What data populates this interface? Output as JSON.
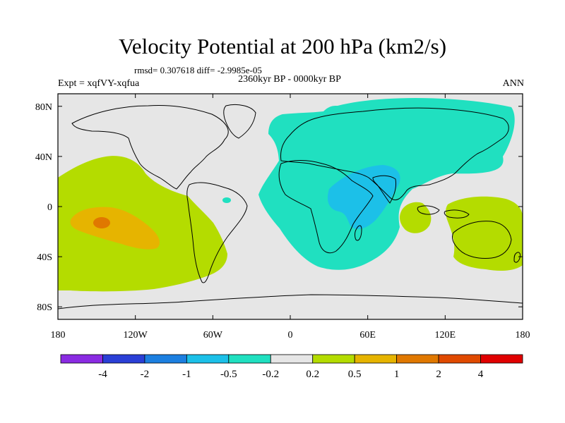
{
  "title": "Velocity Potential at 200 hPa (km2/s)",
  "stats": "rmsd= 0.307618 diff= -2.9985e-05",
  "period": "2360kyr BP - 0000kyr BP",
  "experiment": "Expt = xqfVY-xqfua",
  "season": "ANN",
  "axes": {
    "lon_ticks": [
      {
        "value": -180,
        "label": "180"
      },
      {
        "value": -120,
        "label": "120W"
      },
      {
        "value": -60,
        "label": "60W"
      },
      {
        "value": 0,
        "label": "0"
      },
      {
        "value": 60,
        "label": "60E"
      },
      {
        "value": 120,
        "label": "120E"
      },
      {
        "value": 180,
        "label": "180"
      }
    ],
    "lat_ticks": [
      {
        "value": 80,
        "label": "80N"
      },
      {
        "value": 40,
        "label": "40N"
      },
      {
        "value": 0,
        "label": "0"
      },
      {
        "value": -40,
        "label": "40S"
      },
      {
        "value": -80,
        "label": "80S"
      }
    ],
    "lon_range": [
      -180,
      180
    ],
    "lat_range": [
      -90,
      90
    ]
  },
  "colorbar": {
    "colors": [
      "#8a2be2",
      "#2a3fd6",
      "#1c7fe0",
      "#1cc0e8",
      "#20e0c0",
      "#e6e6e6",
      "#b4dc00",
      "#e6b400",
      "#e07800",
      "#e04a00",
      "#e00000"
    ],
    "labels": [
      "-4",
      "-2",
      "-1",
      "-0.5",
      "-0.2",
      "0.2",
      "0.5",
      "1",
      "2",
      "4"
    ]
  },
  "colors": {
    "background_field": "#e6e6e6",
    "negative_weak": "#20e0c0",
    "negative_moderate": "#1cc0e8",
    "positive_weak": "#b4dc00",
    "positive_moderate": "#e6b400",
    "positive_strong": "#e07800"
  }
}
